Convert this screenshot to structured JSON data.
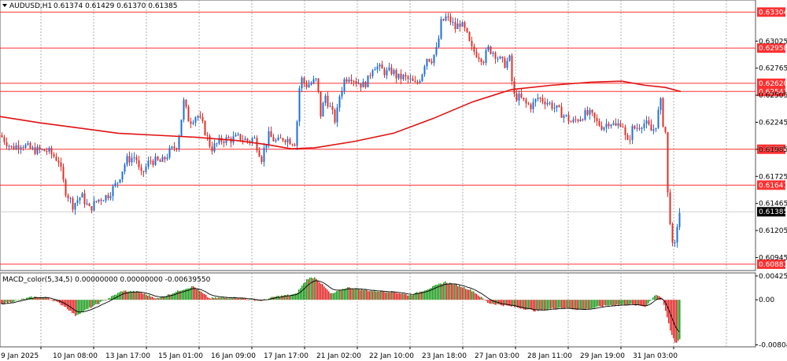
{
  "header": {
    "symbol": "AUDUSD,H1",
    "ohlc": "0.61374 0.61429 0.61370 0.61385"
  },
  "macd_header": {
    "label": "MACD_color(5,34,5) 0.00000000 0.00000000 -0.00639550"
  },
  "colors": {
    "bull": "#1e6fd9",
    "bear": "#e0302a",
    "hline": "#ff3030",
    "ma": "#e01010",
    "grid": "#9a9a9a",
    "hist_pos": "#1a9a1a",
    "hist_neg": "#e02020",
    "signal": "#000000"
  },
  "chart_data": [
    {
      "type": "candlestick",
      "ylim": [
        0.6082,
        0.6342
      ],
      "price_ticks": [
        "0.63025",
        "0.62765",
        "0.62505",
        "0.62245",
        "0.61985",
        "0.61725",
        "0.61465",
        "0.61205",
        "0.60945"
      ],
      "horizontal_levels": [
        "0.63304",
        "0.62958",
        "0.62620",
        "0.62541",
        "0.61986",
        "0.61641",
        "0.60881"
      ],
      "current_price": "0.61385",
      "x_labels": [
        "9 Jan 2025",
        "10 Jan 08:00",
        "13 Jan 17:00",
        "15 Jan 01:00",
        "16 Jan 09:00",
        "17 Jan 17:00",
        "21 Jan 02:00",
        "22 Jan 10:00",
        "23 Jan 18:00",
        "27 Jan 03:00",
        "28 Jan 11:00",
        "29 Jan 19:00",
        "31 Jan 03:00"
      ],
      "close_path": [
        [
          0,
          0.6212
        ],
        [
          14,
          0.62
        ],
        [
          26,
          0.6204
        ],
        [
          40,
          0.6198
        ],
        [
          60,
          0.6197
        ],
        [
          74,
          0.6188
        ],
        [
          82,
          0.616
        ],
        [
          92,
          0.6145
        ],
        [
          103,
          0.6154
        ],
        [
          113,
          0.6141
        ],
        [
          124,
          0.615
        ],
        [
          136,
          0.6154
        ],
        [
          148,
          0.6166
        ],
        [
          160,
          0.6188
        ],
        [
          172,
          0.6192
        ],
        [
          178,
          0.6172
        ],
        [
          190,
          0.6188
        ],
        [
          205,
          0.6186
        ],
        [
          215,
          0.6196
        ],
        [
          225,
          0.6203
        ],
        [
          233,
          0.6244
        ],
        [
          240,
          0.6225
        ],
        [
          250,
          0.6232
        ],
        [
          258,
          0.622
        ],
        [
          268,
          0.6199
        ],
        [
          282,
          0.6208
        ],
        [
          292,
          0.6208
        ],
        [
          304,
          0.621
        ],
        [
          316,
          0.6206
        ],
        [
          322,
          0.621
        ],
        [
          332,
          0.619
        ],
        [
          340,
          0.6212
        ],
        [
          352,
          0.6205
        ],
        [
          360,
          0.621
        ],
        [
          368,
          0.6207
        ],
        [
          375,
          0.6205
        ],
        [
          381,
          0.6268
        ],
        [
          388,
          0.626
        ],
        [
          395,
          0.6262
        ],
        [
          402,
          0.6265
        ],
        [
          407,
          0.6232
        ],
        [
          413,
          0.625
        ],
        [
          420,
          0.6236
        ],
        [
          426,
          0.6225
        ],
        [
          431,
          0.625
        ],
        [
          437,
          0.6265
        ],
        [
          444,
          0.627
        ],
        [
          452,
          0.6264
        ],
        [
          461,
          0.626
        ],
        [
          467,
          0.6265
        ],
        [
          474,
          0.628
        ],
        [
          482,
          0.6276
        ],
        [
          490,
          0.6272
        ],
        [
          498,
          0.6274
        ],
        [
          505,
          0.6267
        ],
        [
          511,
          0.6268
        ],
        [
          520,
          0.6265
        ],
        [
          528,
          0.626
        ],
        [
          535,
          0.627
        ],
        [
          541,
          0.6287
        ],
        [
          548,
          0.6285
        ],
        [
          555,
          0.6295
        ],
        [
          560,
          0.632
        ],
        [
          566,
          0.6325
        ],
        [
          572,
          0.6322
        ],
        [
          578,
          0.6315
        ],
        [
          584,
          0.632
        ],
        [
          592,
          0.631
        ],
        [
          598,
          0.6295
        ],
        [
          606,
          0.629
        ],
        [
          614,
          0.6285
        ],
        [
          620,
          0.6295
        ],
        [
          627,
          0.6292
        ],
        [
          634,
          0.6285
        ],
        [
          640,
          0.628
        ],
        [
          647,
          0.6285
        ],
        [
          652,
          0.625
        ],
        [
          660,
          0.6248
        ],
        [
          668,
          0.6242
        ],
        [
          675,
          0.624
        ],
        [
          683,
          0.6248
        ],
        [
          693,
          0.6245
        ],
        [
          702,
          0.624
        ],
        [
          710,
          0.6235
        ],
        [
          718,
          0.623
        ],
        [
          726,
          0.6224
        ],
        [
          734,
          0.6228
        ],
        [
          742,
          0.6232
        ],
        [
          750,
          0.6232
        ],
        [
          758,
          0.6224
        ],
        [
          766,
          0.622
        ],
        [
          774,
          0.6226
        ],
        [
          782,
          0.622
        ],
        [
          790,
          0.6226
        ],
        [
          796,
          0.6202
        ],
        [
          803,
          0.6218
        ],
        [
          810,
          0.622
        ],
        [
          816,
          0.6224
        ],
        [
          822,
          0.6222
        ],
        [
          828,
          0.6215
        ],
        [
          835,
          0.6226
        ],
        [
          838,
          0.625
        ],
        [
          842,
          0.6224
        ],
        [
          845,
          0.6215
        ],
        [
          847,
          0.6162
        ],
        [
          850,
          0.6142
        ],
        [
          853,
          0.6108
        ],
        [
          856,
          0.6098
        ],
        [
          859,
          0.612
        ],
        [
          862,
          0.6138
        ],
        [
          864,
          0.6138
        ]
      ],
      "moving_average": [
        [
          0,
          0.623
        ],
        [
          50,
          0.6224
        ],
        [
          100,
          0.6219
        ],
        [
          150,
          0.6214
        ],
        [
          200,
          0.6212
        ],
        [
          250,
          0.621
        ],
        [
          300,
          0.6207
        ],
        [
          340,
          0.6203
        ],
        [
          370,
          0.6199
        ],
        [
          400,
          0.62
        ],
        [
          450,
          0.6206
        ],
        [
          500,
          0.6214
        ],
        [
          550,
          0.6228
        ],
        [
          600,
          0.6244
        ],
        [
          650,
          0.6256
        ],
        [
          700,
          0.626
        ],
        [
          750,
          0.6263
        ],
        [
          790,
          0.6264
        ],
        [
          820,
          0.626
        ],
        [
          845,
          0.6258
        ],
        [
          865,
          0.6254
        ]
      ]
    },
    {
      "type": "bar",
      "series": "MACD histogram",
      "ylim": [
        -0.0084,
        0.0048
      ],
      "y_ticks": [
        "0.00425193",
        "0.00",
        "-0.00804237"
      ],
      "waves": [
        [
          0,
          -0.0008
        ],
        [
          40,
          0.0005
        ],
        [
          60,
          0.0004
        ],
        [
          82,
          -0.0012
        ],
        [
          95,
          -0.0028
        ],
        [
          120,
          -0.001
        ],
        [
          155,
          0.0016
        ],
        [
          175,
          0.0014
        ],
        [
          200,
          0.0002
        ],
        [
          230,
          0.0018
        ],
        [
          245,
          0.0024
        ],
        [
          265,
          0.0003
        ],
        [
          300,
          0.0004
        ],
        [
          330,
          -0.0002
        ],
        [
          350,
          0.0006
        ],
        [
          375,
          0.001
        ],
        [
          390,
          0.0038
        ],
        [
          400,
          0.004
        ],
        [
          420,
          0.001
        ],
        [
          440,
          0.0022
        ],
        [
          470,
          0.0016
        ],
        [
          500,
          0.0014
        ],
        [
          520,
          0.0008
        ],
        [
          540,
          0.0018
        ],
        [
          565,
          0.0032
        ],
        [
          585,
          0.0024
        ],
        [
          600,
          0.0016
        ],
        [
          620,
          -0.0006
        ],
        [
          650,
          -0.0012
        ],
        [
          680,
          -0.002
        ],
        [
          710,
          -0.0014
        ],
        [
          740,
          -0.0018
        ],
        [
          770,
          -0.001
        ],
        [
          800,
          -0.0008
        ],
        [
          820,
          -0.0012
        ],
        [
          832,
          0.001
        ],
        [
          840,
          0.0004
        ],
        [
          845,
          -0.002
        ],
        [
          852,
          -0.006
        ],
        [
          858,
          -0.0078
        ],
        [
          863,
          -0.007
        ]
      ]
    }
  ]
}
